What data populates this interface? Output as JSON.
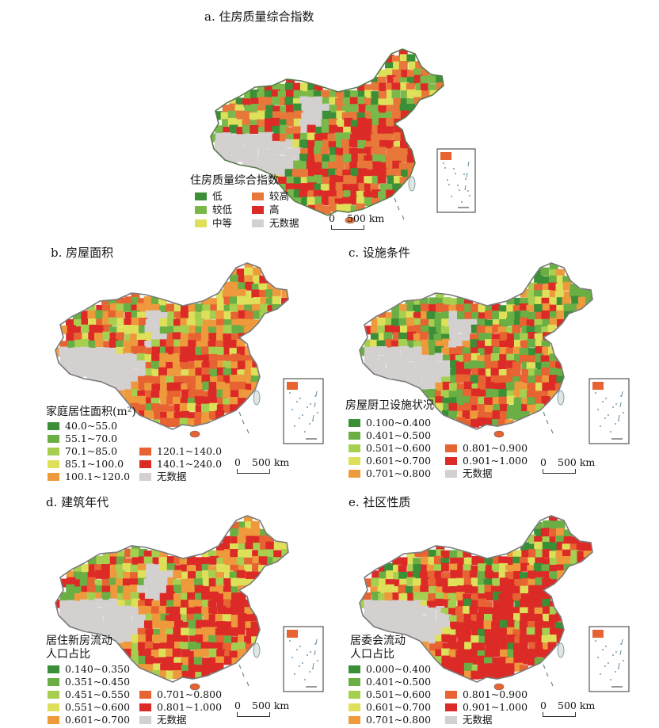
{
  "legend_colors": {
    "dark_green": "#3a8f37",
    "green": "#7bb84a",
    "light_green": "#a6cf4f",
    "yellow": "#dfe05a",
    "orange": "#ee9a3c",
    "orange_red": "#e76332",
    "red": "#dc2a27",
    "gray": "#d4d0d0"
  },
  "scale_bar": {
    "zero": "0",
    "distance": "500 km"
  },
  "panels": [
    {
      "title": "a. 住房质量综合指数",
      "legend_title": "住房质量综合指数",
      "legend_title_2": "",
      "items": [
        {
          "label": "低",
          "color": "#3a8f37"
        },
        {
          "label": "较低",
          "color": "#7bb84a"
        },
        {
          "label": "中等",
          "color": "#dfe05a"
        },
        {
          "label": "较高",
          "color": "#e8773a"
        },
        {
          "label": "高",
          "color": "#dc2a27"
        },
        {
          "label": "无数据",
          "color": "#d4d0d0"
        }
      ]
    },
    {
      "title": "b. 房屋面积",
      "legend_title": "家庭居住面积(m²)",
      "legend_title_2": "",
      "items": [
        {
          "label": "40.0~55.0",
          "color": "#3a8f37"
        },
        {
          "label": "55.1~70.0",
          "color": "#6aae44"
        },
        {
          "label": "70.1~85.0",
          "color": "#a6cf4f"
        },
        {
          "label": "85.1~100.0",
          "color": "#dfe05a"
        },
        {
          "label": "100.1~120.0",
          "color": "#ee9a3c"
        },
        {
          "label": "120.1~140.0",
          "color": "#e76332"
        },
        {
          "label": "140.1~240.0",
          "color": "#dc2a27"
        },
        {
          "label": "无数据",
          "color": "#d4d0d0"
        }
      ]
    },
    {
      "title": "c. 设施条件",
      "legend_title": "房屋厨卫设施状况",
      "legend_title_2": "",
      "items": [
        {
          "label": "0.100~0.400",
          "color": "#3a8f37"
        },
        {
          "label": "0.401~0.500",
          "color": "#6aae44"
        },
        {
          "label": "0.501~0.600",
          "color": "#a6cf4f"
        },
        {
          "label": "0.601~0.700",
          "color": "#dfe05a"
        },
        {
          "label": "0.701~0.800",
          "color": "#ee9a3c"
        },
        {
          "label": "0.801~0.900",
          "color": "#e76332"
        },
        {
          "label": "0.901~1.000",
          "color": "#dc2a27"
        },
        {
          "label": "无数据",
          "color": "#d4d0d0"
        }
      ]
    },
    {
      "title": "d. 建筑年代",
      "legend_title": "居住新房流动",
      "legend_title_2": "人口占比",
      "items": [
        {
          "label": "0.140~0.350",
          "color": "#3a8f37"
        },
        {
          "label": "0.351~0.450",
          "color": "#6aae44"
        },
        {
          "label": "0.451~0.550",
          "color": "#a6cf4f"
        },
        {
          "label": "0.551~0.600",
          "color": "#dfe05a"
        },
        {
          "label": "0.601~0.700",
          "color": "#ee9a3c"
        },
        {
          "label": "0.701~0.800",
          "color": "#e76332"
        },
        {
          "label": "0.801~1.000",
          "color": "#dc2a27"
        },
        {
          "label": "无数据",
          "color": "#d4d0d0"
        }
      ]
    },
    {
      "title": "e. 社区性质",
      "legend_title": "居委会流动",
      "legend_title_2": "人口占比",
      "items": [
        {
          "label": "0.000~0.400",
          "color": "#3a8f37"
        },
        {
          "label": "0.401~0.500",
          "color": "#6aae44"
        },
        {
          "label": "0.501~0.600",
          "color": "#a6cf4f"
        },
        {
          "label": "0.601~0.700",
          "color": "#dfe05a"
        },
        {
          "label": "0.701~0.800",
          "color": "#ee9a3c"
        },
        {
          "label": "0.801~0.900",
          "color": "#e76332"
        },
        {
          "label": "0.901~1.000",
          "color": "#dc2a27"
        },
        {
          "label": "无数据",
          "color": "#d4d0d0"
        }
      ]
    }
  ],
  "map_palettes": {
    "a": [
      "#3a8f37",
      "#7bb84a",
      "#7bb84a",
      "#dfe05a",
      "#e8773a",
      "#e8773a",
      "#dc2a27",
      "#dc2a27"
    ],
    "b": [
      "#6aae44",
      "#a6cf4f",
      "#dfe05a",
      "#ee9a3c",
      "#e76332",
      "#dc2a27",
      "#ee9a3c"
    ],
    "c": [
      "#3a8f37",
      "#6aae44",
      "#a6cf4f",
      "#dfe05a",
      "#ee9a3c",
      "#e76332",
      "#dc2a27",
      "#6aae44"
    ],
    "d": [
      "#6aae44",
      "#a6cf4f",
      "#dfe05a",
      "#ee9a3c",
      "#e76332",
      "#dc2a27",
      "#dc2a27",
      "#ee9a3c"
    ],
    "e": [
      "#3a8f37",
      "#6aae44",
      "#a6cf4f",
      "#dfe05a",
      "#ee9a3c",
      "#e76332",
      "#dc2a27",
      "#dc2a27",
      "#dc2a27"
    ]
  },
  "inset": {
    "icon": "south-china-sea-inset"
  }
}
